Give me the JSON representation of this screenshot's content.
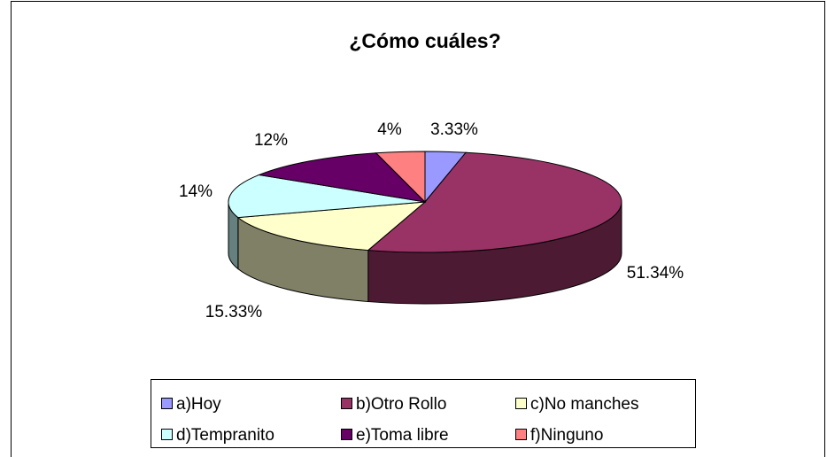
{
  "chart_data": {
    "type": "pie",
    "title": "¿Cómo cuáles?",
    "categories": [
      "a)Hoy",
      "b)Otro Rollo",
      "c)No manches",
      "d)Tempranito",
      "e)Toma libre",
      "f)Ninguno"
    ],
    "values": [
      3.33,
      51.34,
      15.33,
      14,
      12,
      4
    ],
    "value_labels": [
      "3.33%",
      "51.34%",
      "15.33%",
      "14%",
      "12%",
      "4%"
    ],
    "colors": [
      "#9999ff",
      "#993366",
      "#ffffcc",
      "#ccffff",
      "#660066",
      "#ff8080"
    ],
    "legend": "bottom"
  }
}
